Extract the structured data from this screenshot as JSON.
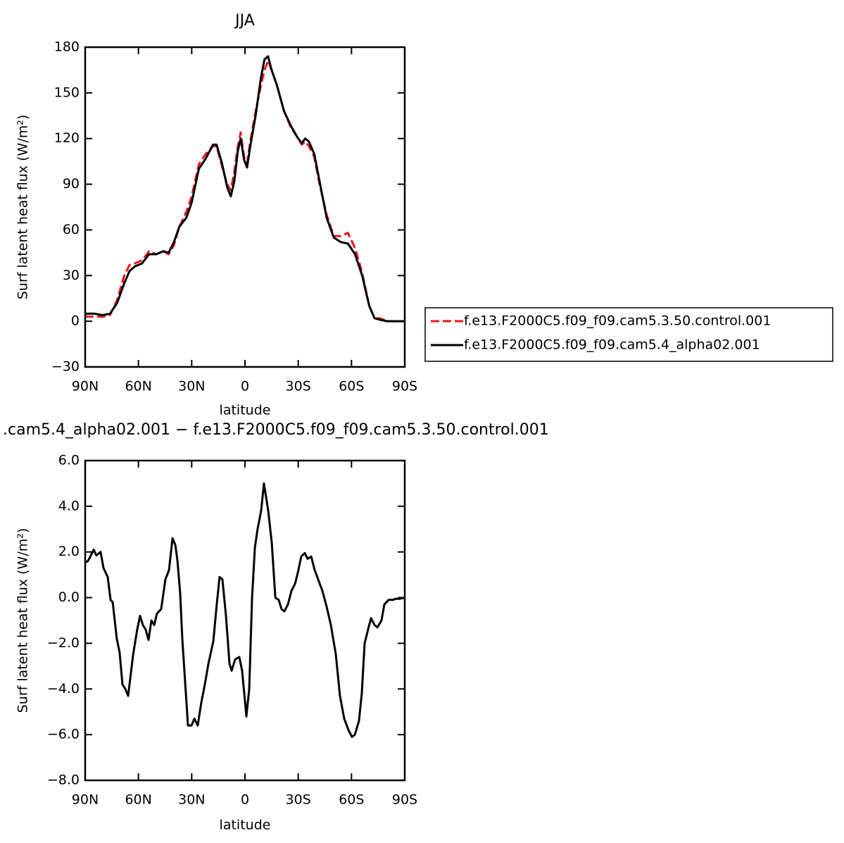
{
  "chart_data": [
    {
      "type": "line",
      "title": "JJA",
      "x_label": "latitude",
      "y_label": "Surf latent heat flux (W/m²)",
      "xlim": [
        90,
        -90
      ],
      "xticks": [
        {
          "value": 90,
          "label": "90N"
        },
        {
          "value": 60,
          "label": "60N"
        },
        {
          "value": 30,
          "label": "30N"
        },
        0,
        {
          "value": -30,
          "label": "30S"
        },
        {
          "value": -60,
          "label": "60S"
        },
        {
          "value": -90,
          "label": "90S"
        }
      ],
      "ylim": [
        -30,
        180
      ],
      "yticks": [
        {
          "value": -30,
          "label": "−30"
        },
        0,
        30,
        60,
        90,
        120,
        150,
        180
      ],
      "x": [
        90,
        85,
        80,
        76,
        72,
        68,
        65,
        62,
        58,
        54,
        50,
        46,
        43,
        40,
        37,
        33,
        30,
        26,
        22,
        18,
        16,
        13,
        10,
        8,
        6,
        4,
        2.4,
        0.5,
        -1.2,
        -3,
        -6,
        -9,
        -11,
        -13,
        -15,
        -18,
        -22,
        -26,
        -30,
        -32,
        -34,
        -36,
        -39,
        -42,
        -46,
        -50,
        -54,
        -58,
        -62,
        -66,
        -70,
        -73,
        -76,
        -80,
        -85,
        -90
      ],
      "series": [
        {
          "name": "f.e13.F2000C5.f09_f09.cam5.3.50.control.001",
          "color": "#e8141c",
          "linestyle": "dashed",
          "values": [
            3,
            3,
            3,
            4,
            14,
            30,
            37,
            38,
            40,
            46,
            44,
            46,
            44,
            50,
            62,
            72,
            82,
            103,
            110,
            115,
            115,
            102,
            90,
            86,
            98,
            115,
            124,
            108,
            104,
            118,
            138,
            155,
            165,
            171,
            165,
            155,
            138,
            127,
            120,
            116,
            118,
            115,
            108,
            90,
            70,
            56,
            56,
            58,
            48,
            32,
            10,
            2,
            2,
            0,
            0,
            0
          ]
        },
        {
          "name": "f.e13.F2000C5.f09_f09.cam5.4_alpha02.001",
          "color": "#000000",
          "linestyle": "solid",
          "values": [
            5,
            5,
            4,
            5,
            12,
            25,
            33,
            36,
            38,
            44,
            44,
            46,
            45,
            52,
            62,
            68,
            78,
            100,
            107,
            116,
            116,
            104,
            88,
            82,
            92,
            112,
            120,
            106,
            101,
            115,
            135,
            160,
            172,
            174,
            165,
            155,
            138,
            128,
            120,
            117,
            120,
            118,
            110,
            92,
            68,
            55,
            52,
            51,
            44,
            30,
            10,
            2,
            1,
            0,
            0,
            0
          ]
        }
      ]
    },
    {
      "type": "line",
      "title": ".cam5.4_alpha02.001 − f.e13.F2000C5.f09_f09.cam5.3.50.control.001",
      "x_label": "latitude",
      "y_label": "Surf latent heat flux (W/m²)",
      "xlim": [
        90,
        -90
      ],
      "xticks": [
        {
          "value": 90,
          "label": "90N"
        },
        {
          "value": 60,
          "label": "60N"
        },
        {
          "value": 30,
          "label": "30N"
        },
        0,
        {
          "value": -30,
          "label": "30S"
        },
        {
          "value": -60,
          "label": "60S"
        },
        {
          "value": -90,
          "label": "90S"
        }
      ],
      "ylim": [
        -8,
        6
      ],
      "yticks": [
        {
          "value": -8,
          "label": "−8.0"
        },
        {
          "value": -6,
          "label": "−6.0"
        },
        {
          "value": -4,
          "label": "−4.0"
        },
        {
          "value": -2,
          "label": "−2.0"
        },
        {
          "value": 0,
          "label": "0.0"
        },
        {
          "value": 2,
          "label": "2.0"
        },
        {
          "value": 4,
          "label": "4.0"
        },
        {
          "value": 6,
          "label": "6.0"
        }
      ],
      "x": [
        90,
        88.4,
        85.2,
        83.7,
        81.3,
        79.7,
        77.3,
        75.7,
        74.5,
        72.2,
        70.6,
        69,
        67.4,
        65.8,
        63,
        60.7,
        59.1,
        57.5,
        55.9,
        54.3,
        52.7,
        51.1,
        49.6,
        47.2,
        44.8,
        42.8,
        40.8,
        39.2,
        38,
        36.5,
        35.3,
        32.1,
        30.1,
        28.5,
        26.6,
        24.6,
        22.6,
        20.6,
        17.8,
        15.9,
        14.3,
        12.7,
        10.7,
        8.7,
        7.5,
        5.5,
        3.2,
        1.6,
        -0.8,
        -2.4,
        -4,
        -5.6,
        -7.1,
        -9.1,
        -10.7,
        -13.1,
        -15.1,
        -17.1,
        -19,
        -20.6,
        -22.2,
        -24.2,
        -26.2,
        -28.2,
        -29.8,
        -31.7,
        -33.7,
        -35.3,
        -37.3,
        -39.3,
        -41.2,
        -43.6,
        -46,
        -48.4,
        -51.2,
        -53.5,
        -55.9,
        -58.3,
        -60.3,
        -61.9,
        -64.2,
        -65.8,
        -67.4,
        -69,
        -71,
        -73,
        -74.6,
        -76.9,
        -78.5,
        -80.9,
        -83.3,
        -84.9,
        -87.2,
        -90
      ],
      "series": [
        {
          "color": "#000000",
          "linestyle": "solid",
          "values": [
            1.55,
            1.6,
            2.1,
            1.85,
            2.0,
            1.3,
            0.9,
            -0.1,
            -0.2,
            -1.8,
            -2.4,
            -3.8,
            -4.0,
            -4.3,
            -2.5,
            -1.4,
            -0.8,
            -1.2,
            -1.4,
            -1.85,
            -1.0,
            -1.2,
            -0.7,
            -0.5,
            0.8,
            1.2,
            2.6,
            2.3,
            1.6,
            0.2,
            -1.8,
            -5.6,
            -5.6,
            -5.3,
            -5.6,
            -4.6,
            -3.8,
            -2.9,
            -1.9,
            -0.3,
            0.9,
            0.8,
            -0.8,
            -2.9,
            -3.2,
            -2.7,
            -2.6,
            -3.2,
            -5.2,
            -4.0,
            0.0,
            2.2,
            3.0,
            3.8,
            5.0,
            3.8,
            2.4,
            0.0,
            -0.1,
            -0.5,
            -0.6,
            -0.3,
            0.3,
            0.6,
            1.1,
            1.8,
            1.95,
            1.7,
            1.8,
            1.2,
            0.8,
            0.3,
            -0.4,
            -1.2,
            -2.5,
            -4.3,
            -5.3,
            -5.8,
            -6.1,
            -6.0,
            -5.4,
            -4.2,
            -2.0,
            -1.5,
            -0.9,
            -1.2,
            -1.3,
            -1.0,
            -0.3,
            -0.1,
            -0.1,
            -0.05,
            -0.05,
            0
          ]
        }
      ]
    }
  ]
}
